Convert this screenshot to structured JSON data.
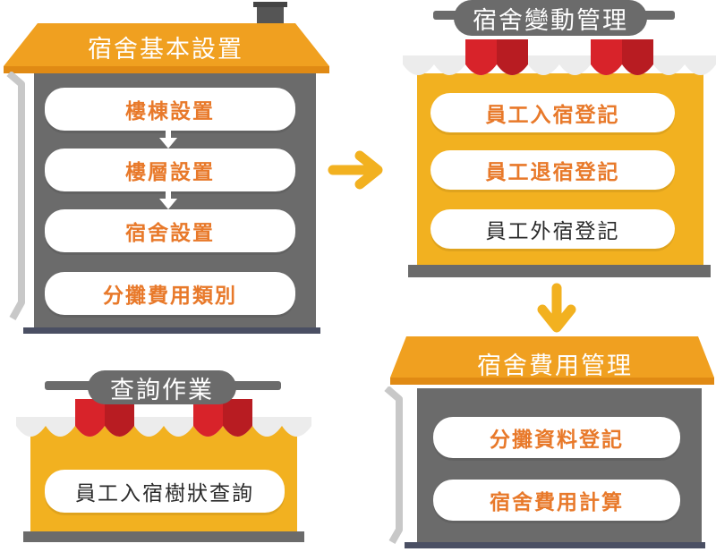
{
  "colors": {
    "roof_orange": "#f0a020",
    "wall_gray": "#6b6b6b",
    "wall_yellow": "#f2b120",
    "awning_red": "#d8232a",
    "text_orange": "#e8792a"
  },
  "basic_settings": {
    "title": "宿舍基本設置",
    "items": [
      "樓棟設置",
      "樓層設置",
      "宿舍設置",
      "分攤費用類別"
    ]
  },
  "change_management": {
    "title": "宿舍變動管理",
    "items": [
      "員工入宿登記",
      "員工退宿登記",
      "員工外宿登記"
    ]
  },
  "cost_management": {
    "title": "宿舍費用管理",
    "items": [
      "分攤資料登記",
      "宿舍費用計算"
    ]
  },
  "query": {
    "title": "查詢作業",
    "items": [
      "員工入宿樹狀查詢"
    ]
  }
}
